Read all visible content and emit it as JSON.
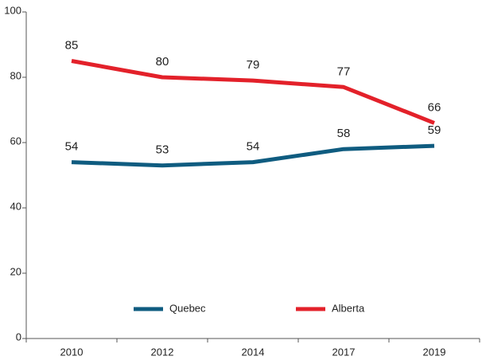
{
  "chart_data": {
    "type": "line",
    "categories": [
      "2010",
      "2012",
      "2014",
      "2017",
      "2019"
    ],
    "series": [
      {
        "name": "Quebec",
        "color": "#0f5c80",
        "values": [
          54,
          53,
          54,
          58,
          59
        ]
      },
      {
        "name": "Alberta",
        "color": "#e3212a",
        "values": [
          85,
          80,
          79,
          77,
          66
        ]
      }
    ],
    "ylim": [
      0,
      100
    ],
    "yticks": [
      0,
      20,
      40,
      60,
      80,
      100
    ],
    "legend": "bottom",
    "data_labels": true
  }
}
